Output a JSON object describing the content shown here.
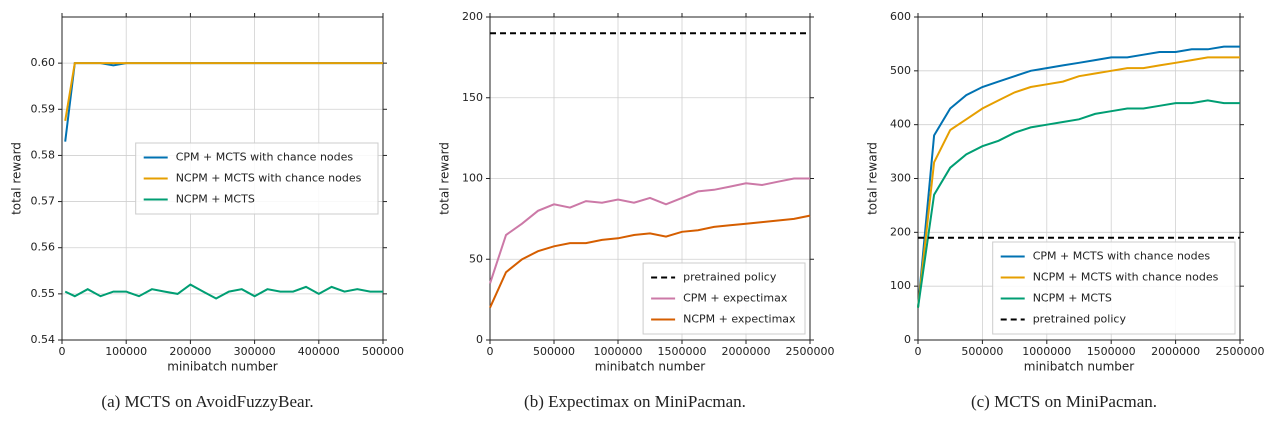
{
  "chart_data": [
    {
      "type": "line",
      "caption": "(a) MCTS on AvoidFuzzyBear.",
      "xlabel": "minibatch number",
      "ylabel": "total reward",
      "x": [
        5000,
        20000,
        40000,
        60000,
        80000,
        100000,
        120000,
        140000,
        160000,
        180000,
        200000,
        220000,
        240000,
        260000,
        280000,
        300000,
        320000,
        340000,
        360000,
        380000,
        400000,
        420000,
        440000,
        460000,
        480000,
        500000
      ],
      "xlim": [
        0,
        500000
      ],
      "xticks": [
        0,
        100000,
        200000,
        300000,
        400000,
        500000
      ],
      "ylim": [
        0.54,
        0.61
      ],
      "yticks": [
        0.54,
        0.55,
        0.56,
        0.57,
        0.58,
        0.59,
        {
          "value": 0.6,
          "label": "0.60"
        }
      ],
      "grid": true,
      "legend": "center right",
      "series": [
        {
          "name": "CPM + MCTS with chance nodes",
          "color": "#0072b2",
          "values": [
            0.583,
            0.6,
            0.6,
            0.6,
            0.5995,
            0.6,
            0.6,
            0.6,
            0.6,
            0.6,
            0.6,
            0.6,
            0.6,
            0.6,
            0.6,
            0.6,
            0.6,
            0.6,
            0.6,
            0.6,
            0.6,
            0.6,
            0.6,
            0.6,
            0.6,
            0.6
          ]
        },
        {
          "name": "NCPM + MCTS with chance nodes",
          "color": "#e69f00",
          "values": [
            0.5875,
            0.6,
            0.6,
            0.6,
            0.6,
            0.6,
            0.6,
            0.6,
            0.6,
            0.6,
            0.6,
            0.6,
            0.6,
            0.6,
            0.6,
            0.6,
            0.6,
            0.6,
            0.6,
            0.6,
            0.6,
            0.6,
            0.6,
            0.6,
            0.6,
            0.6
          ]
        },
        {
          "name": "NCPM + MCTS",
          "color": "#009e73",
          "values": [
            0.5505,
            0.5495,
            0.551,
            0.5495,
            0.5505,
            0.5505,
            0.5495,
            0.551,
            0.5505,
            0.55,
            0.552,
            0.5505,
            0.549,
            0.5505,
            0.551,
            0.5495,
            0.551,
            0.5505,
            0.5505,
            0.5515,
            0.55,
            0.5515,
            0.5505,
            0.551,
            0.5505,
            0.5505
          ]
        }
      ]
    },
    {
      "type": "line",
      "caption": "(b) Expectimax on MiniPacman.",
      "xlabel": "minibatch number",
      "ylabel": "total reward",
      "x": [
        0,
        125000,
        250000,
        375000,
        500000,
        625000,
        750000,
        875000,
        1000000,
        1125000,
        1250000,
        1375000,
        1500000,
        1625000,
        1750000,
        1875000,
        2000000,
        2125000,
        2250000,
        2375000,
        2500000
      ],
      "xlim": [
        0,
        2500000
      ],
      "xticks": [
        0,
        500000,
        1000000,
        1500000,
        2000000,
        2500000
      ],
      "ylim": [
        0,
        200
      ],
      "yticks": [
        0,
        50,
        100,
        150,
        200
      ],
      "grid": true,
      "legend": "lower right",
      "series": [
        {
          "name": "pretrained policy",
          "color": "#000000",
          "linestyle": "dashed",
          "x": [
            0,
            2500000
          ],
          "values": [
            190,
            190
          ]
        },
        {
          "name": "CPM + expectimax",
          "color": "#cc79a7",
          "values": [
            35,
            65,
            72,
            80,
            84,
            82,
            86,
            85,
            87,
            85,
            88,
            84,
            88,
            92,
            93,
            95,
            97,
            96,
            98,
            100,
            100
          ]
        },
        {
          "name": "NCPM + expectimax",
          "color": "#d55e00",
          "values": [
            20,
            42,
            50,
            55,
            58,
            60,
            60,
            62,
            63,
            65,
            66,
            64,
            67,
            68,
            70,
            71,
            72,
            73,
            74,
            75,
            77
          ]
        }
      ]
    },
    {
      "type": "line",
      "caption": "(c) MCTS on MiniPacman.",
      "xlabel": "minibatch number",
      "ylabel": "total reward",
      "x": [
        0,
        125000,
        250000,
        375000,
        500000,
        625000,
        750000,
        875000,
        1000000,
        1125000,
        1250000,
        1375000,
        1500000,
        1625000,
        1750000,
        1875000,
        2000000,
        2125000,
        2250000,
        2375000,
        2500000
      ],
      "xlim": [
        0,
        2500000
      ],
      "xticks": [
        0,
        500000,
        1000000,
        1500000,
        2000000,
        2500000
      ],
      "ylim": [
        0,
        600
      ],
      "yticks": [
        0,
        100,
        200,
        300,
        400,
        500,
        600
      ],
      "grid": true,
      "legend": "lower right",
      "series": [
        {
          "name": "CPM + MCTS with chance nodes",
          "color": "#0072b2",
          "values": [
            60,
            380,
            430,
            455,
            470,
            480,
            490,
            500,
            505,
            510,
            515,
            520,
            525,
            525,
            530,
            535,
            535,
            540,
            540,
            545,
            545
          ]
        },
        {
          "name": "NCPM + MCTS with chance nodes",
          "color": "#e69f00",
          "values": [
            60,
            330,
            390,
            410,
            430,
            445,
            460,
            470,
            475,
            480,
            490,
            495,
            500,
            505,
            505,
            510,
            515,
            520,
            525,
            525,
            525
          ]
        },
        {
          "name": "NCPM + MCTS",
          "color": "#009e73",
          "values": [
            60,
            270,
            320,
            345,
            360,
            370,
            385,
            395,
            400,
            405,
            410,
            420,
            425,
            430,
            430,
            435,
            440,
            440,
            445,
            440,
            440
          ]
        },
        {
          "name": "pretrained policy",
          "color": "#000000",
          "linestyle": "dashed",
          "x": [
            0,
            2500000
          ],
          "values": [
            190,
            190
          ]
        }
      ]
    }
  ]
}
